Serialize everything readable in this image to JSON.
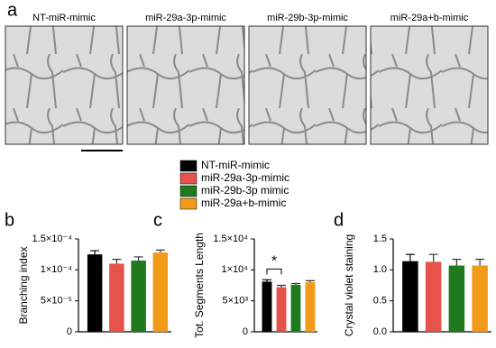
{
  "panel_labels": [
    "a",
    "b",
    "c",
    "d"
  ],
  "images": [
    {
      "label": "NT-miR-mimic"
    },
    {
      "label": "miR-29a-3p-mimic"
    },
    {
      "label": "miR-29b-3p-mimic"
    },
    {
      "label": "miR-29a+b-mimic"
    }
  ],
  "legend": {
    "entries": [
      {
        "name": "NT-miR-mimic",
        "color": "#000000"
      },
      {
        "name": "miR-29a-3p-mimic",
        "color": "#e5534b"
      },
      {
        "name": "miR-29b-3p mimic",
        "color": "#1f7a1f"
      },
      {
        "name": "miR-29a+b-mimic",
        "color": "#f29a1a"
      }
    ]
  },
  "chart_data": [
    {
      "type": "bar",
      "ylabel": "Branching index",
      "categories": [
        null,
        null,
        null,
        null
      ],
      "values": [
        0.000125,
        0.00011,
        0.000115,
        0.000128
      ],
      "errors": [
        6e-06,
        7e-06,
        6e-06,
        4e-06
      ],
      "ylim": [
        0,
        0.00015
      ],
      "yticks": [
        0,
        {
          "value": 5e-05,
          "label": "5×10⁻⁵"
        },
        {
          "value": 0.0001,
          "label": "1×10⁻⁴"
        },
        {
          "value": 0.00015,
          "label": "1.5×10⁻⁴"
        }
      ]
    },
    {
      "type": "bar",
      "ylabel": "Tot. Segments Length",
      "categories": [
        null,
        null,
        null,
        null
      ],
      "values": [
        8100,
        7200,
        7600,
        8000
      ],
      "errors": [
        300,
        300,
        200,
        250
      ],
      "ylim": [
        0,
        15000
      ],
      "annotation": "*",
      "yticks": [
        0,
        {
          "value": 5000,
          "label": "5×10³"
        },
        {
          "value": 10000,
          "label": "1×10⁴"
        },
        {
          "value": 15000,
          "label": "1.5×10⁴"
        }
      ]
    },
    {
      "type": "bar",
      "ylabel": "Crystal violet staining",
      "categories": [
        null,
        null,
        null,
        null
      ],
      "values": [
        1.14,
        1.13,
        1.07,
        1.07
      ],
      "errors": [
        0.11,
        0.12,
        0.1,
        0.1
      ],
      "ylim": [
        0,
        1.5
      ],
      "yticks": [
        {
          "value": 0,
          "label": "0.0"
        },
        {
          "value": 0.5,
          "label": "0.5"
        },
        {
          "value": 1,
          "label": "1.0"
        },
        {
          "value": 1.5,
          "label": "1.5"
        }
      ]
    }
  ]
}
